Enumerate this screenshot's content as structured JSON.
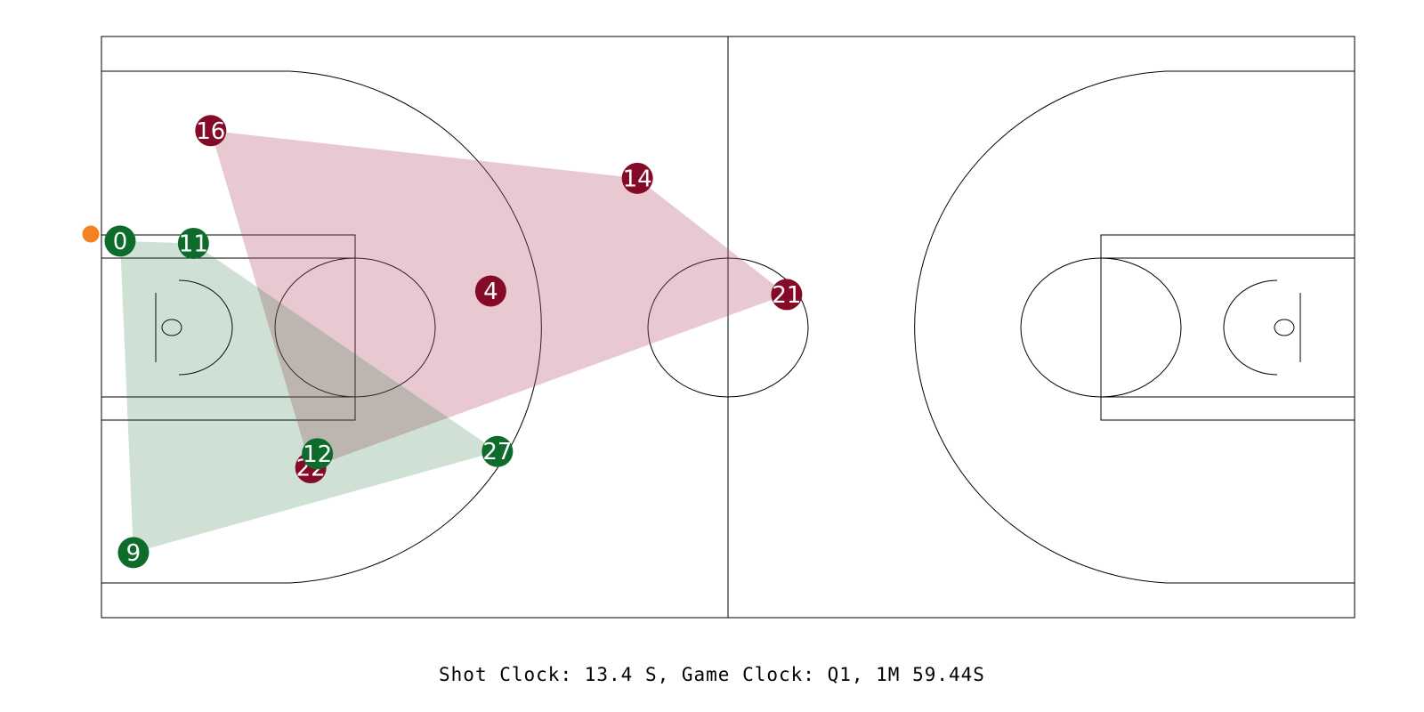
{
  "colors": {
    "home": "#0d6b2b",
    "away": "#840a27",
    "ball": "#f5821f",
    "home_hull": "#0d6b2b",
    "away_hull": "#b8536f"
  },
  "home_team": {
    "players": [
      {
        "number": "0",
        "x": 1.4,
        "y": 17.6
      },
      {
        "number": "11",
        "x": 6.9,
        "y": 17.8
      },
      {
        "number": "12",
        "x": 16.2,
        "y": 35.9
      },
      {
        "number": "27",
        "x": 29.7,
        "y": 35.7
      },
      {
        "number": "9",
        "x": 2.4,
        "y": 44.4
      }
    ]
  },
  "away_team": {
    "players": [
      {
        "number": "16",
        "x": 8.2,
        "y": 8.1
      },
      {
        "number": "14",
        "x": 40.2,
        "y": 12.2
      },
      {
        "number": "4",
        "x": 29.2,
        "y": 21.9
      },
      {
        "number": "21",
        "x": 51.4,
        "y": 22.2
      },
      {
        "number": "22",
        "x": 15.7,
        "y": 37.1
      }
    ]
  },
  "ball": {
    "x": -0.8,
    "y": 17.0
  },
  "home_hull_order": [
    "0",
    "11",
    "27",
    "9"
  ],
  "away_hull_order": [
    "16",
    "14",
    "21",
    "22"
  ],
  "status": {
    "clock_text": "Shot Clock: 13.4 S, Game Clock: Q1, 1M 59.44S"
  }
}
